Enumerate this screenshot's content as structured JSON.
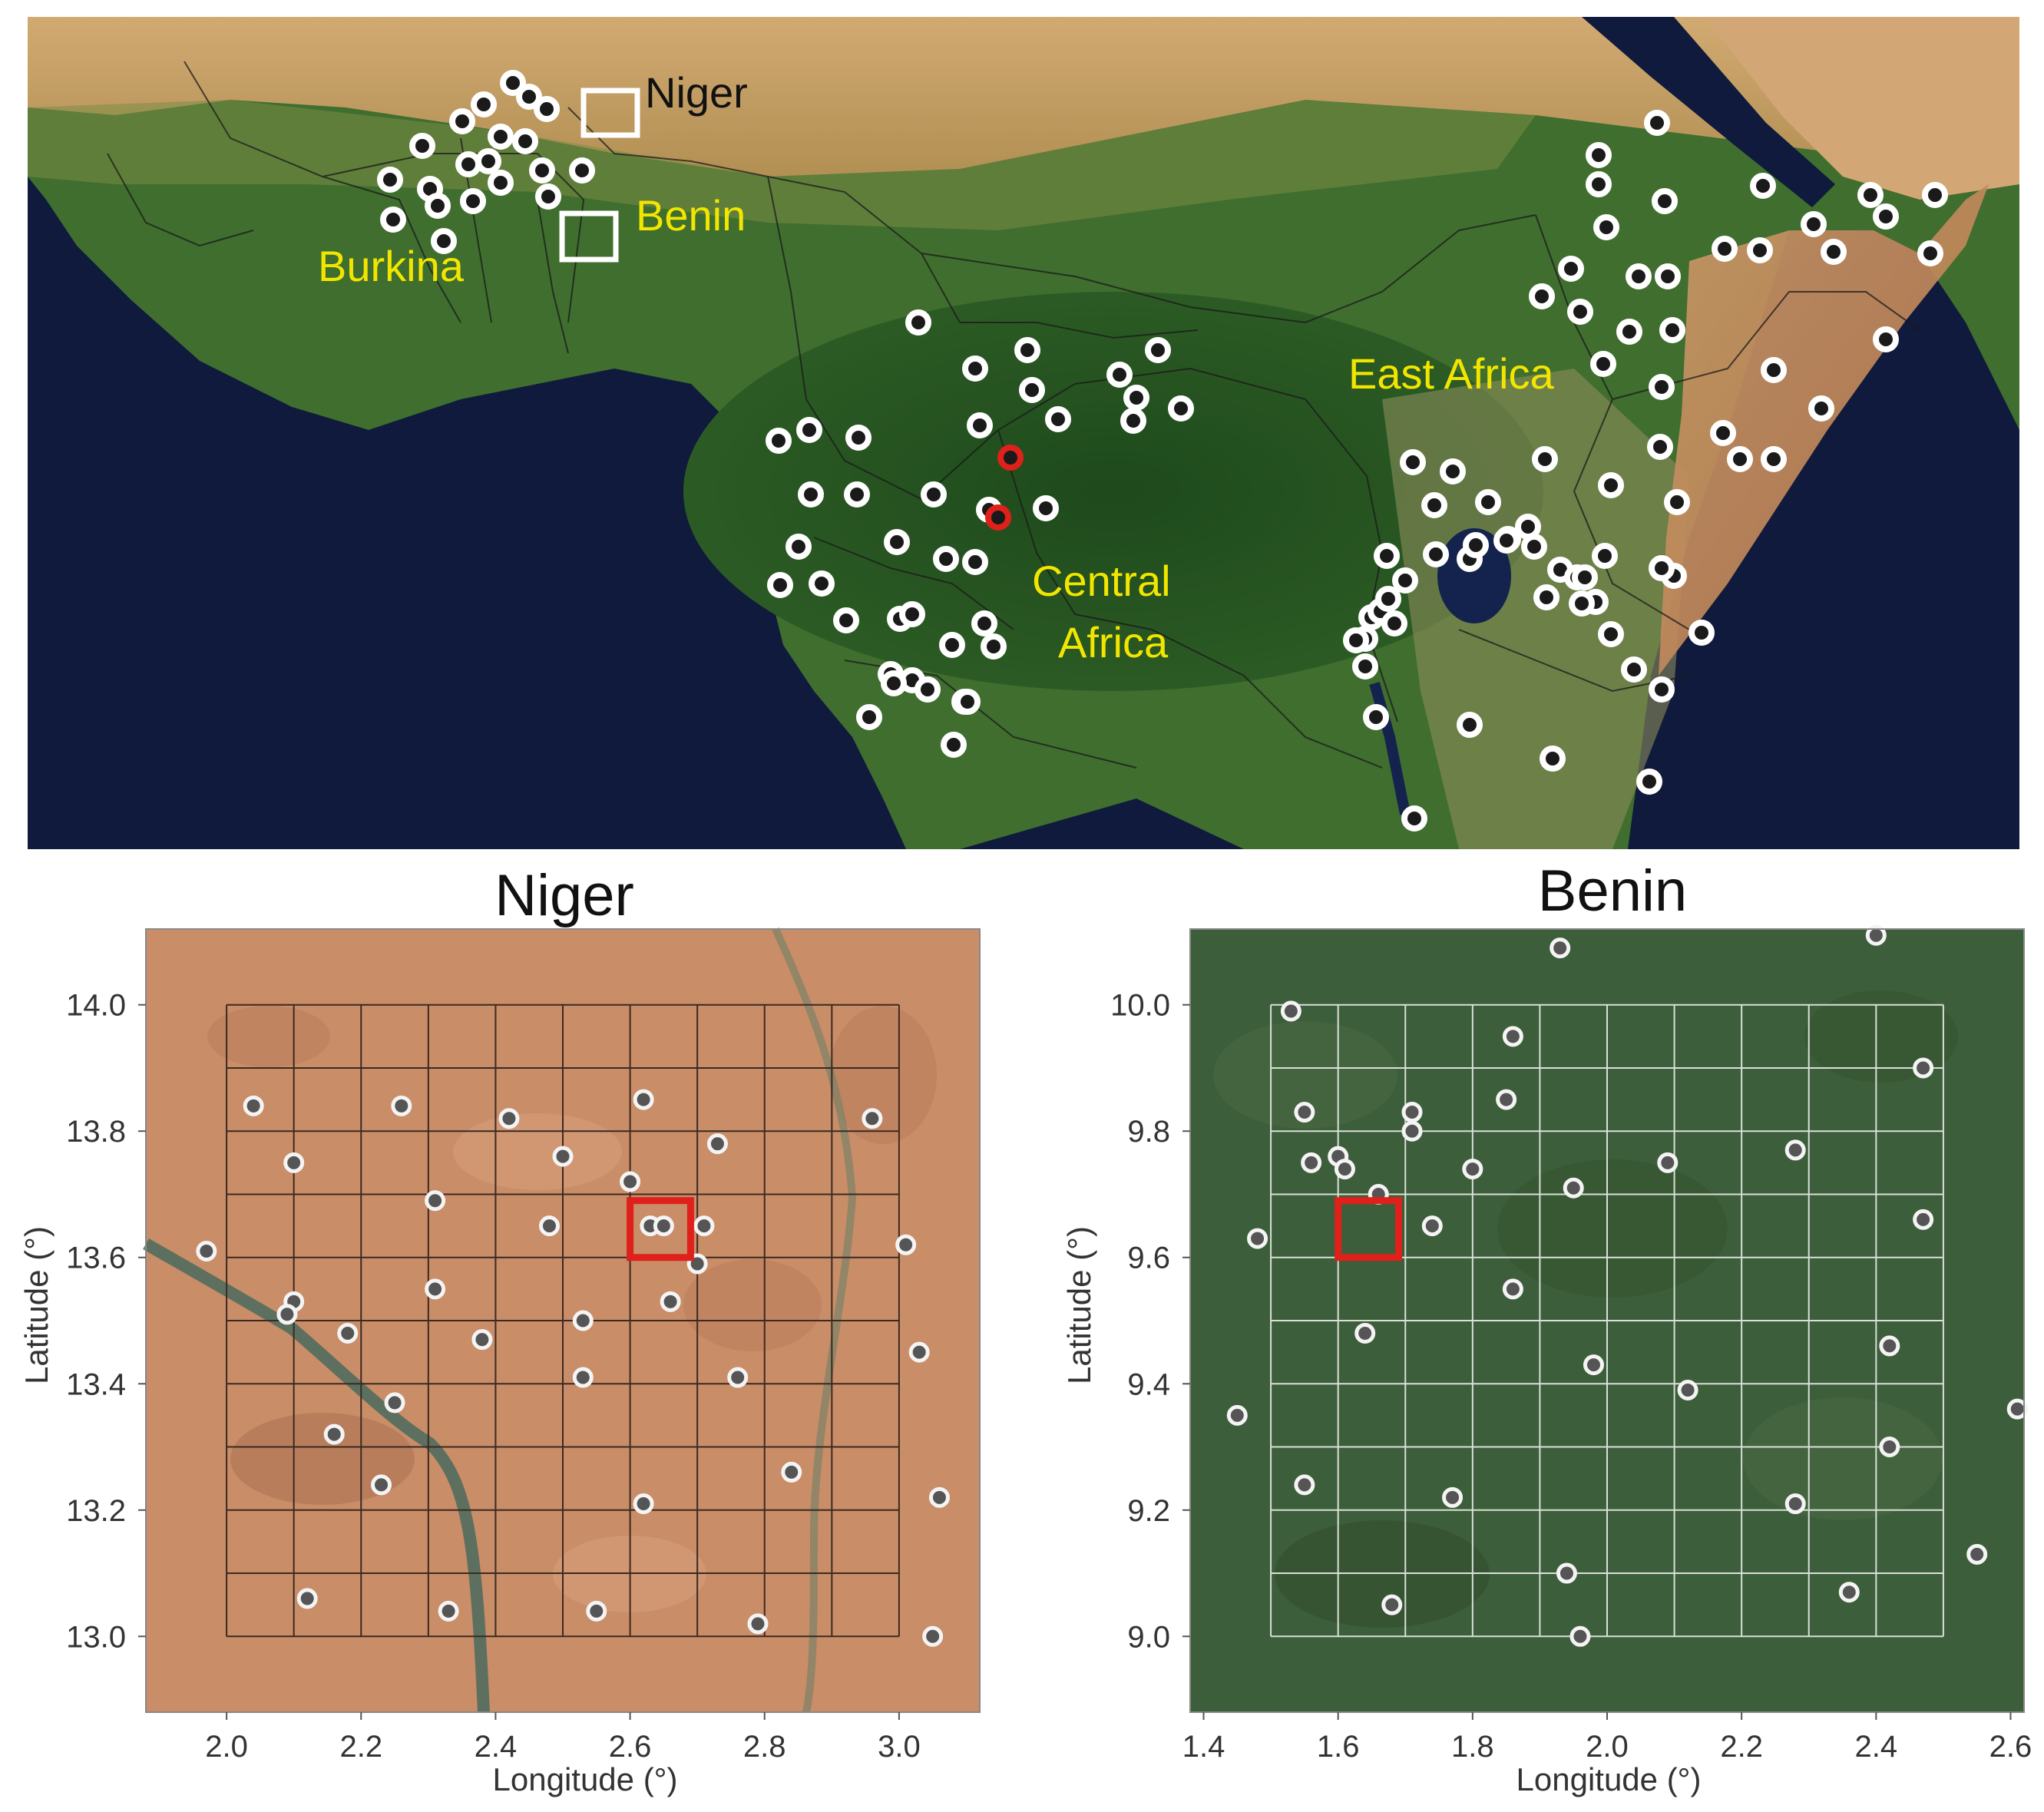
{
  "top_map": {
    "labels": [
      "Niger",
      "Benin",
      "Burkina",
      "East Africa",
      "Central",
      "Africa"
    ],
    "colors": {
      "ocean": "#0f1a3c",
      "land_green": "#3c6b2c",
      "desert": "#cfa46a",
      "label_yellow": "#f2e600",
      "label_black": "#111111",
      "site_white": "#ffffff",
      "site_red": "#e0201b"
    }
  },
  "niger_panel": {
    "title": "Niger",
    "xlabel": "Longitude (°)",
    "ylabel": "Latitude (°)",
    "xticks": [
      "2.0",
      "2.2",
      "2.4",
      "2.6",
      "2.8",
      "3.0"
    ],
    "yticks": [
      "13.0",
      "13.2",
      "13.4",
      "13.6",
      "13.8",
      "14.0"
    ],
    "xlim": [
      1.88,
      3.12
    ],
    "ylim": [
      12.88,
      14.12
    ],
    "sites": [
      [
        2.04,
        13.84
      ],
      [
        2.26,
        13.84
      ],
      [
        2.42,
        13.82
      ],
      [
        2.62,
        13.85
      ],
      [
        2.73,
        13.78
      ],
      [
        2.96,
        13.82
      ],
      [
        2.1,
        13.75
      ],
      [
        2.5,
        13.76
      ],
      [
        2.6,
        13.72
      ],
      [
        2.31,
        13.69
      ],
      [
        2.48,
        13.65
      ],
      [
        2.63,
        13.65
      ],
      [
        2.65,
        13.65
      ],
      [
        2.71,
        13.65
      ],
      [
        1.97,
        13.61
      ],
      [
        3.01,
        13.62
      ],
      [
        2.7,
        13.59
      ],
      [
        2.1,
        13.53
      ],
      [
        2.09,
        13.51
      ],
      [
        2.31,
        13.55
      ],
      [
        2.66,
        13.53
      ],
      [
        2.18,
        13.48
      ],
      [
        2.38,
        13.47
      ],
      [
        2.53,
        13.5
      ],
      [
        3.03,
        13.45
      ],
      [
        2.53,
        13.41
      ],
      [
        2.76,
        13.41
      ],
      [
        2.25,
        13.37
      ],
      [
        2.16,
        13.32
      ],
      [
        2.23,
        13.24
      ],
      [
        2.84,
        13.26
      ],
      [
        2.62,
        13.21
      ],
      [
        3.06,
        13.22
      ],
      [
        2.12,
        13.06
      ],
      [
        2.33,
        13.04
      ],
      [
        2.55,
        13.04
      ],
      [
        2.79,
        13.02
      ],
      [
        3.05,
        13.0
      ]
    ],
    "highlight_box": [
      2.6,
      2.69,
      13.6,
      13.69
    ]
  },
  "benin_panel": {
    "title": "Benin",
    "xlabel": "Longitude (°)",
    "ylabel": "Latitude (°)",
    "xticks": [
      "1.4",
      "1.6",
      "1.8",
      "2.0",
      "2.2",
      "2.4",
      "2.6"
    ],
    "yticks": [
      "9.0",
      "9.2",
      "9.4",
      "9.6",
      "9.8",
      "10.0"
    ],
    "xlim": [
      1.38,
      2.62
    ],
    "ylim": [
      8.88,
      10.12
    ],
    "sites": [
      [
        1.93,
        10.09
      ],
      [
        2.4,
        10.11
      ],
      [
        1.53,
        9.99
      ],
      [
        1.86,
        9.95
      ],
      [
        2.47,
        9.9
      ],
      [
        1.55,
        9.83
      ],
      [
        1.71,
        9.83
      ],
      [
        1.85,
        9.85
      ],
      [
        1.71,
        9.8
      ],
      [
        2.28,
        9.77
      ],
      [
        1.56,
        9.75
      ],
      [
        1.6,
        9.76
      ],
      [
        1.61,
        9.74
      ],
      [
        1.8,
        9.74
      ],
      [
        2.09,
        9.75
      ],
      [
        1.95,
        9.71
      ],
      [
        1.66,
        9.7
      ],
      [
        1.74,
        9.65
      ],
      [
        2.47,
        9.66
      ],
      [
        1.48,
        9.63
      ],
      [
        1.86,
        9.55
      ],
      [
        1.64,
        9.48
      ],
      [
        2.42,
        9.46
      ],
      [
        1.98,
        9.43
      ],
      [
        2.12,
        9.39
      ],
      [
        1.45,
        9.35
      ],
      [
        2.61,
        9.36
      ],
      [
        2.42,
        9.3
      ],
      [
        1.55,
        9.24
      ],
      [
        1.77,
        9.22
      ],
      [
        2.28,
        9.21
      ],
      [
        2.55,
        9.13
      ],
      [
        1.94,
        9.1
      ],
      [
        2.36,
        9.07
      ],
      [
        1.68,
        9.05
      ],
      [
        1.96,
        9.0
      ]
    ],
    "highlight_box": [
      1.6,
      1.69,
      9.6,
      9.69
    ]
  }
}
